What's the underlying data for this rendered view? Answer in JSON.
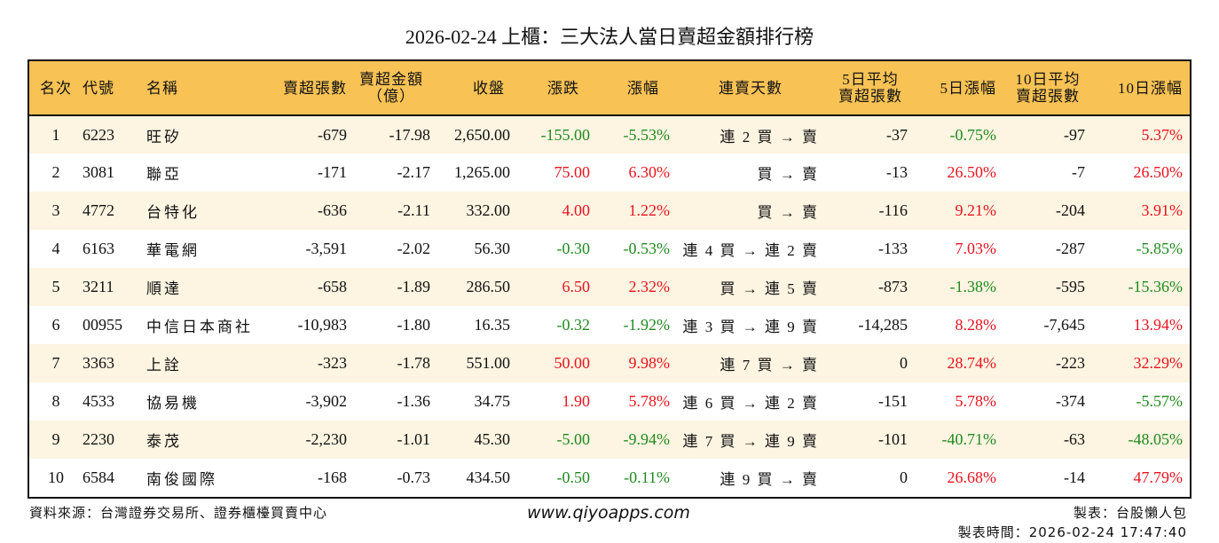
{
  "title": "2026-02-24 上櫃：三大法人當日賣超金額排行榜",
  "colors": {
    "header_bg": "#F8C255",
    "row_alt_bg": "#FDF4E1",
    "up": "#E8141F",
    "down": "#1F8A1F",
    "border": "#111111"
  },
  "columns": [
    {
      "key": "rank",
      "label": "名次"
    },
    {
      "key": "code",
      "label": "代號"
    },
    {
      "key": "name",
      "label": "名稱"
    },
    {
      "key": "net_sell_lots",
      "label": "賣超張數"
    },
    {
      "key": "net_sell_amount",
      "label_line1": "賣超金額",
      "label_line2": "（億）"
    },
    {
      "key": "close",
      "label": "收盤"
    },
    {
      "key": "change",
      "label": "漲跌"
    },
    {
      "key": "change_pct",
      "label": "漲幅"
    },
    {
      "key": "streak",
      "label": "連賣天數"
    },
    {
      "key": "avg5_sell_lots",
      "label_line1": "5日平均",
      "label_line2": "賣超張數"
    },
    {
      "key": "pct5",
      "label": "5日漲幅"
    },
    {
      "key": "avg10_sell_lots",
      "label_line1": "10日平均",
      "label_line2": "賣超張數"
    },
    {
      "key": "pct10",
      "label": "10日漲幅"
    }
  ],
  "rows": [
    {
      "rank": "1",
      "code": "6223",
      "name": "旺矽",
      "net_sell_lots": "-679",
      "net_sell_amount": "-17.98",
      "close": "2,650.00",
      "change": "-155.00",
      "change_pct": "-5.53%",
      "streak": "連 2 買 → 賣",
      "avg5_sell_lots": "-37",
      "pct5": "-0.75%",
      "avg10_sell_lots": "-97",
      "pct10": "5.37%"
    },
    {
      "rank": "2",
      "code": "3081",
      "name": "聯亞",
      "net_sell_lots": "-171",
      "net_sell_amount": "-2.17",
      "close": "1,265.00",
      "change": "75.00",
      "change_pct": "6.30%",
      "streak": "買 → 賣",
      "avg5_sell_lots": "-13",
      "pct5": "26.50%",
      "avg10_sell_lots": "-7",
      "pct10": "26.50%"
    },
    {
      "rank": "3",
      "code": "4772",
      "name": "台特化",
      "net_sell_lots": "-636",
      "net_sell_amount": "-2.11",
      "close": "332.00",
      "change": "4.00",
      "change_pct": "1.22%",
      "streak": "買 → 賣",
      "avg5_sell_lots": "-116",
      "pct5": "9.21%",
      "avg10_sell_lots": "-204",
      "pct10": "3.91%"
    },
    {
      "rank": "4",
      "code": "6163",
      "name": "華電網",
      "net_sell_lots": "-3,591",
      "net_sell_amount": "-2.02",
      "close": "56.30",
      "change": "-0.30",
      "change_pct": "-0.53%",
      "streak": "連 4 買 → 連 2 賣",
      "avg5_sell_lots": "-133",
      "pct5": "7.03%",
      "avg10_sell_lots": "-287",
      "pct10": "-5.85%"
    },
    {
      "rank": "5",
      "code": "3211",
      "name": "順達",
      "net_sell_lots": "-658",
      "net_sell_amount": "-1.89",
      "close": "286.50",
      "change": "6.50",
      "change_pct": "2.32%",
      "streak": "買 → 連 5 賣",
      "avg5_sell_lots": "-873",
      "pct5": "-1.38%",
      "avg10_sell_lots": "-595",
      "pct10": "-15.36%"
    },
    {
      "rank": "6",
      "code": "00955",
      "name": "中信日本商社",
      "net_sell_lots": "-10,983",
      "net_sell_amount": "-1.80",
      "close": "16.35",
      "change": "-0.32",
      "change_pct": "-1.92%",
      "streak": "連 3 買 → 連 9 賣",
      "avg5_sell_lots": "-14,285",
      "pct5": "8.28%",
      "avg10_sell_lots": "-7,645",
      "pct10": "13.94%"
    },
    {
      "rank": "7",
      "code": "3363",
      "name": "上詮",
      "net_sell_lots": "-323",
      "net_sell_amount": "-1.78",
      "close": "551.00",
      "change": "50.00",
      "change_pct": "9.98%",
      "streak": "連 7 買 → 賣",
      "avg5_sell_lots": "0",
      "pct5": "28.74%",
      "avg10_sell_lots": "-223",
      "pct10": "32.29%"
    },
    {
      "rank": "8",
      "code": "4533",
      "name": "協易機",
      "net_sell_lots": "-3,902",
      "net_sell_amount": "-1.36",
      "close": "34.75",
      "change": "1.90",
      "change_pct": "5.78%",
      "streak": "連 6 買 → 連 2 賣",
      "avg5_sell_lots": "-151",
      "pct5": "5.78%",
      "avg10_sell_lots": "-374",
      "pct10": "-5.57%"
    },
    {
      "rank": "9",
      "code": "2230",
      "name": "泰茂",
      "net_sell_lots": "-2,230",
      "net_sell_amount": "-1.01",
      "close": "45.30",
      "change": "-5.00",
      "change_pct": "-9.94%",
      "streak": "連 7 買 → 連 9 賣",
      "avg5_sell_lots": "-101",
      "pct5": "-40.71%",
      "avg10_sell_lots": "-63",
      "pct10": "-48.05%"
    },
    {
      "rank": "10",
      "code": "6584",
      "name": "南俊國際",
      "net_sell_lots": "-168",
      "net_sell_amount": "-0.73",
      "close": "434.50",
      "change": "-0.50",
      "change_pct": "-0.11%",
      "streak": "連 9 買 → 賣",
      "avg5_sell_lots": "0",
      "pct5": "26.68%",
      "avg10_sell_lots": "-14",
      "pct10": "47.79%"
    }
  ],
  "footer": {
    "source": "資料來源：台灣證券交易所、證券櫃檯買賣中心",
    "website": "www.qiyoapps.com",
    "author": "製表：台股懶人包",
    "generated_at": "製表時間：2026-02-24 17:47:40"
  }
}
